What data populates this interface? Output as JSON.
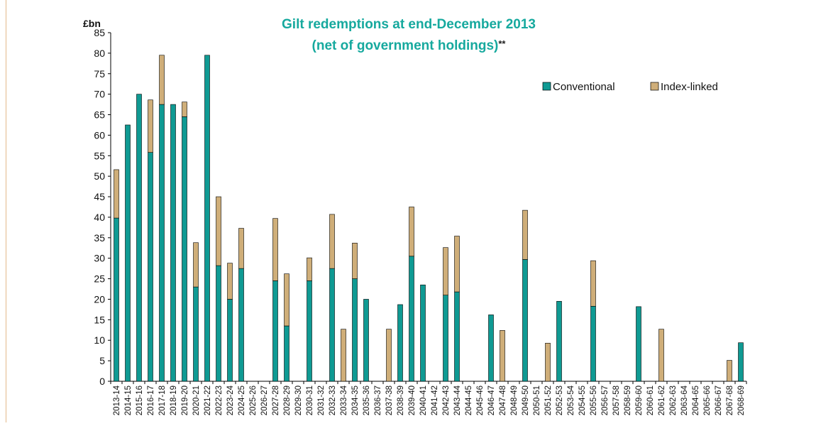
{
  "chart_data": {
    "type": "bar",
    "stacked": true,
    "title_line1": "Gilt redemptions at end-December 2013",
    "title_line2": "(net of government holdings)",
    "title_footnote": "**",
    "ylabel": "£bn",
    "xlabel": "",
    "ylim": [
      0,
      85
    ],
    "yticks": [
      0,
      5,
      10,
      15,
      20,
      25,
      30,
      35,
      40,
      45,
      50,
      55,
      60,
      65,
      70,
      75,
      80,
      85
    ],
    "grid": false,
    "legend_position": "top-right",
    "categories": [
      "2013-14",
      "2014-15",
      "2015-16",
      "2016-17",
      "2017-18",
      "2018-19",
      "2019-20",
      "2020-21",
      "2021-22",
      "2022-23",
      "2023-24",
      "2024-25",
      "2025-26",
      "2026-27",
      "2027-28",
      "2028-29",
      "2029-30",
      "2030-31",
      "2031-32",
      "2032-33",
      "2033-34",
      "2034-35",
      "2035-36",
      "2036-37",
      "2037-38",
      "2038-39",
      "2039-40",
      "2040-41",
      "2041-42",
      "2042-43",
      "2043-44",
      "2044-45",
      "2045-46",
      "2046-47",
      "2047-48",
      "2048-49",
      "2049-50",
      "2050-51",
      "2051-52",
      "2052-53",
      "2053-54",
      "2054-55",
      "2055-56",
      "2056-57",
      "2057-58",
      "2058-59",
      "2059-60",
      "2060-61",
      "2061-62",
      "2062-63",
      "2063-64",
      "2064-65",
      "2065-66",
      "2066-67",
      "2067-68",
      "2068-69"
    ],
    "series": [
      {
        "name": "Conventional",
        "color": "#0f9a93",
        "values": [
          39.8,
          62.5,
          70.0,
          55.8,
          67.5,
          67.5,
          64.5,
          23.0,
          79.5,
          28.2,
          20.0,
          27.5,
          0,
          0,
          24.5,
          13.5,
          0,
          24.5,
          0,
          27.5,
          0,
          25.0,
          20.0,
          0,
          0,
          18.7,
          30.5,
          23.5,
          0,
          21.0,
          21.8,
          0,
          0,
          16.2,
          0,
          0,
          29.7,
          0,
          0,
          19.5,
          0,
          0,
          18.3,
          0,
          0,
          0,
          18.2,
          0,
          0,
          0,
          0,
          0,
          0,
          0,
          0,
          9.4
        ]
      },
      {
        "name": "Index-linked",
        "color": "#cfae79",
        "values": [
          11.8,
          0,
          0,
          12.8,
          12.0,
          0,
          3.6,
          10.8,
          0,
          16.8,
          8.8,
          9.8,
          0,
          0,
          15.2,
          12.7,
          0,
          5.6,
          0,
          13.2,
          12.7,
          8.7,
          0,
          0,
          12.7,
          0,
          12.0,
          0,
          0,
          11.6,
          13.6,
          0,
          0,
          0,
          12.4,
          0,
          12.0,
          0,
          9.3,
          0,
          0,
          0,
          11.1,
          0,
          0,
          0,
          0,
          0,
          12.7,
          0,
          0,
          0,
          0,
          0,
          5.1,
          0
        ]
      }
    ]
  }
}
